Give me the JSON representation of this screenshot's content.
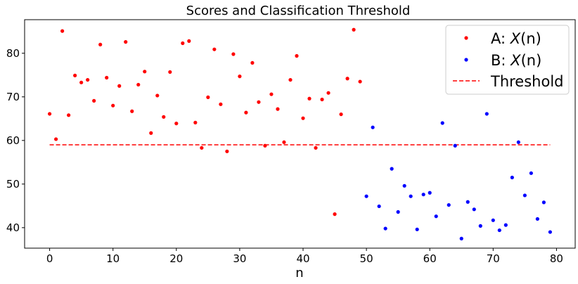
{
  "chart_data": {
    "type": "scatter",
    "title": "Scores and Classification Threshold",
    "xlabel": "n",
    "ylabel": "",
    "xlim": [
      -3.95,
      82.95
    ],
    "ylim": [
      35.3,
      87.7
    ],
    "xticks": [
      0,
      10,
      20,
      30,
      40,
      50,
      60,
      70,
      80
    ],
    "yticks": [
      40,
      50,
      60,
      70,
      80
    ],
    "grid": false,
    "legend_position": "top-right",
    "series": [
      {
        "name_prefix": "A: ",
        "name_var": "X",
        "name_suffix": "(n)",
        "color": "#ff0000",
        "marker": "point",
        "x": [
          0,
          1,
          2,
          3,
          4,
          5,
          6,
          7,
          8,
          9,
          10,
          11,
          12,
          13,
          14,
          15,
          16,
          17,
          18,
          19,
          20,
          21,
          22,
          23,
          24,
          25,
          26,
          27,
          28,
          29,
          30,
          31,
          32,
          33,
          34,
          35,
          36,
          37,
          38,
          39,
          40,
          41,
          42,
          43,
          44,
          45,
          46,
          47,
          48,
          49
        ],
        "y": [
          66.1,
          60.3,
          85.1,
          65.8,
          74.9,
          73.3,
          73.9,
          69.1,
          82.0,
          74.4,
          68.0,
          72.5,
          82.6,
          66.7,
          72.8,
          75.8,
          61.7,
          70.3,
          65.4,
          75.7,
          63.9,
          82.3,
          82.8,
          64.1,
          58.3,
          69.9,
          80.9,
          68.3,
          57.5,
          79.8,
          74.7,
          66.4,
          77.8,
          68.8,
          58.8,
          70.6,
          67.2,
          59.6,
          73.9,
          79.4,
          65.1,
          69.6,
          58.3,
          69.4,
          70.9,
          43.1,
          66.0,
          74.2,
          85.4,
          73.5
        ]
      },
      {
        "name_prefix": "B: ",
        "name_var": "X",
        "name_suffix": "(n)",
        "color": "#0000ff",
        "marker": "point",
        "x": [
          50,
          51,
          52,
          53,
          54,
          55,
          56,
          57,
          58,
          59,
          60,
          61,
          62,
          63,
          64,
          65,
          66,
          67,
          68,
          69,
          70,
          71,
          72,
          73,
          74,
          75,
          76,
          77,
          78,
          79
        ],
        "y": [
          47.2,
          63.0,
          44.9,
          39.8,
          53.5,
          43.6,
          49.6,
          47.2,
          39.6,
          47.6,
          48.0,
          42.6,
          64.0,
          45.2,
          58.8,
          37.5,
          45.9,
          44.2,
          40.4,
          66.1,
          41.7,
          39.4,
          40.6,
          51.5,
          59.6,
          47.4,
          52.5,
          42.0,
          45.8,
          39.0
        ]
      }
    ],
    "threshold": {
      "name": "Threshold",
      "color": "#ff0000",
      "style": "dashed",
      "y": 59.0,
      "x_range": [
        0,
        79
      ]
    }
  }
}
